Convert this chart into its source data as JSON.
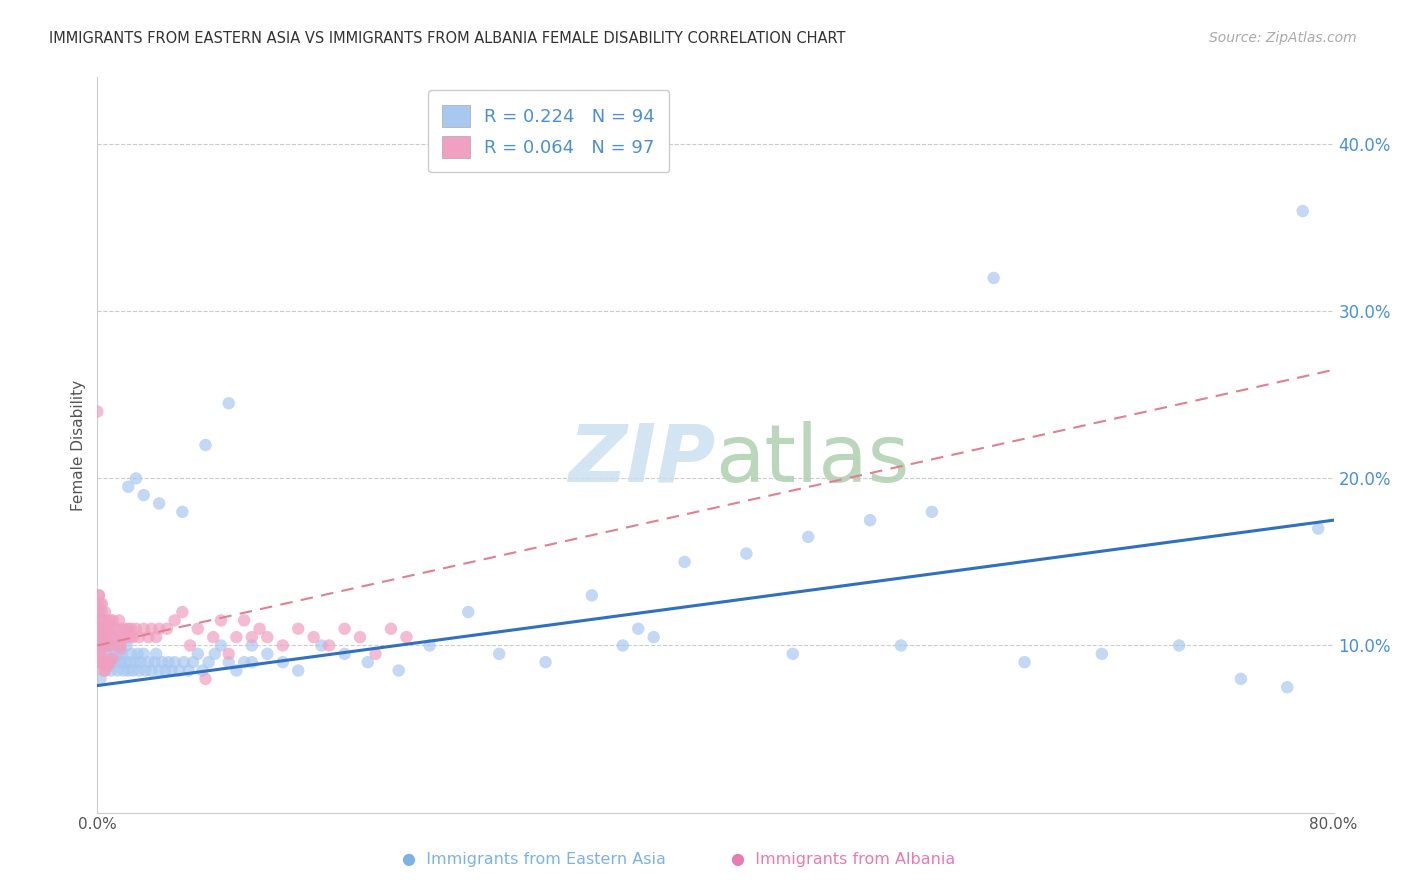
{
  "title": "IMMIGRANTS FROM EASTERN ASIA VS IMMIGRANTS FROM ALBANIA FEMALE DISABILITY CORRELATION CHART",
  "source": "Source: ZipAtlas.com",
  "ylabel": "Female Disability",
  "xlim": [
    0.0,
    0.8
  ],
  "ylim": [
    0.0,
    0.44
  ],
  "yticks": [
    0.1,
    0.2,
    0.3,
    0.4
  ],
  "ytick_labels": [
    "10.0%",
    "20.0%",
    "30.0%",
    "40.0%"
  ],
  "xtick_positions": [
    0.0,
    0.8
  ],
  "xtick_labels": [
    "0.0%",
    "80.0%"
  ],
  "grid_color": "#cccccc",
  "background_color": "#ffffff",
  "watermark": "ZIPatlas",
  "blue_scatter_x": [
    0.001,
    0.002,
    0.002,
    0.003,
    0.003,
    0.004,
    0.004,
    0.005,
    0.005,
    0.006,
    0.007,
    0.008,
    0.009,
    0.01,
    0.011,
    0.012,
    0.013,
    0.014,
    0.015,
    0.016,
    0.017,
    0.018,
    0.019,
    0.02,
    0.021,
    0.022,
    0.023,
    0.025,
    0.026,
    0.027,
    0.028,
    0.03,
    0.031,
    0.033,
    0.035,
    0.037,
    0.038,
    0.04,
    0.042,
    0.044,
    0.046,
    0.048,
    0.05,
    0.053,
    0.056,
    0.059,
    0.062,
    0.065,
    0.068,
    0.072,
    0.076,
    0.08,
    0.085,
    0.09,
    0.095,
    0.1,
    0.11,
    0.12,
    0.13,
    0.145,
    0.16,
    0.175,
    0.195,
    0.215,
    0.24,
    0.26,
    0.29,
    0.32,
    0.35,
    0.38,
    0.42,
    0.46,
    0.5,
    0.54,
    0.58,
    0.34,
    0.36,
    0.45,
    0.52,
    0.6,
    0.65,
    0.7,
    0.74,
    0.77,
    0.78,
    0.79,
    0.02,
    0.025,
    0.03,
    0.04,
    0.055,
    0.07,
    0.085,
    0.1
  ],
  "blue_scatter_y": [
    0.09,
    0.08,
    0.11,
    0.1,
    0.12,
    0.09,
    0.105,
    0.085,
    0.1,
    0.095,
    0.09,
    0.1,
    0.085,
    0.095,
    0.09,
    0.1,
    0.085,
    0.095,
    0.09,
    0.095,
    0.085,
    0.09,
    0.1,
    0.085,
    0.09,
    0.095,
    0.085,
    0.09,
    0.095,
    0.085,
    0.09,
    0.095,
    0.085,
    0.09,
    0.085,
    0.09,
    0.095,
    0.085,
    0.09,
    0.085,
    0.09,
    0.085,
    0.09,
    0.085,
    0.09,
    0.085,
    0.09,
    0.095,
    0.085,
    0.09,
    0.095,
    0.1,
    0.09,
    0.085,
    0.09,
    0.1,
    0.095,
    0.09,
    0.085,
    0.1,
    0.095,
    0.09,
    0.085,
    0.1,
    0.12,
    0.095,
    0.09,
    0.13,
    0.11,
    0.15,
    0.155,
    0.165,
    0.175,
    0.18,
    0.32,
    0.1,
    0.105,
    0.095,
    0.1,
    0.09,
    0.095,
    0.1,
    0.08,
    0.075,
    0.36,
    0.17,
    0.195,
    0.2,
    0.19,
    0.185,
    0.18,
    0.22,
    0.245,
    0.09
  ],
  "pink_scatter_x": [
    0.0,
    0.0,
    0.0,
    0.0,
    0.0,
    0.0,
    0.0,
    0.0,
    0.0,
    0.0,
    0.0,
    0.0,
    0.001,
    0.001,
    0.001,
    0.001,
    0.001,
    0.001,
    0.002,
    0.002,
    0.002,
    0.002,
    0.003,
    0.003,
    0.003,
    0.003,
    0.004,
    0.004,
    0.005,
    0.005,
    0.005,
    0.006,
    0.006,
    0.007,
    0.007,
    0.008,
    0.008,
    0.009,
    0.009,
    0.01,
    0.01,
    0.011,
    0.012,
    0.013,
    0.014,
    0.015,
    0.016,
    0.017,
    0.018,
    0.019,
    0.02,
    0.021,
    0.022,
    0.023,
    0.025,
    0.027,
    0.03,
    0.033,
    0.035,
    0.038,
    0.04,
    0.045,
    0.05,
    0.055,
    0.06,
    0.065,
    0.07,
    0.075,
    0.08,
    0.085,
    0.09,
    0.095,
    0.1,
    0.105,
    0.11,
    0.12,
    0.13,
    0.14,
    0.15,
    0.16,
    0.17,
    0.18,
    0.19,
    0.2,
    0.0,
    0.001,
    0.001,
    0.002,
    0.003,
    0.004,
    0.005,
    0.006,
    0.007,
    0.008,
    0.009,
    0.01,
    0.015
  ],
  "pink_scatter_y": [
    0.1,
    0.11,
    0.12,
    0.09,
    0.105,
    0.115,
    0.1,
    0.125,
    0.095,
    0.105,
    0.115,
    0.125,
    0.1,
    0.11,
    0.12,
    0.09,
    0.105,
    0.13,
    0.1,
    0.115,
    0.125,
    0.095,
    0.105,
    0.115,
    0.125,
    0.09,
    0.105,
    0.115,
    0.1,
    0.11,
    0.12,
    0.105,
    0.115,
    0.1,
    0.11,
    0.105,
    0.115,
    0.1,
    0.11,
    0.105,
    0.115,
    0.105,
    0.11,
    0.105,
    0.115,
    0.1,
    0.11,
    0.105,
    0.11,
    0.105,
    0.11,
    0.105,
    0.11,
    0.105,
    0.11,
    0.105,
    0.11,
    0.105,
    0.11,
    0.105,
    0.11,
    0.11,
    0.115,
    0.12,
    0.1,
    0.11,
    0.08,
    0.105,
    0.115,
    0.095,
    0.105,
    0.115,
    0.105,
    0.11,
    0.105,
    0.1,
    0.11,
    0.105,
    0.1,
    0.11,
    0.105,
    0.095,
    0.11,
    0.105,
    0.24,
    0.13,
    0.105,
    0.095,
    0.09,
    0.085,
    0.085,
    0.088,
    0.088,
    0.09,
    0.092,
    0.092,
    0.098
  ],
  "blue_line": {
    "x_start": 0.0,
    "y_start": 0.076,
    "x_end": 0.8,
    "y_end": 0.175,
    "color": "#3070c0",
    "linewidth": 2.2
  },
  "pink_line": {
    "x_start": 0.0,
    "y_start": 0.1,
    "x_end": 0.8,
    "y_end": 0.265,
    "color": "#e08090",
    "linewidth": 1.5
  },
  "blue_color": "#a8c8f0",
  "pink_color": "#f0a0c0",
  "legend_entries": [
    {
      "label_r": "R = ",
      "r_val": "0.224",
      "label_n": "   N = ",
      "n_val": "94",
      "color": "#a8c8f0"
    },
    {
      "label_r": "R = ",
      "r_val": "0.064",
      "label_n": "   N = ",
      "n_val": "97",
      "color": "#f0a0c0"
    }
  ],
  "bottom_labels": [
    "Immigrants from Eastern Asia",
    "Immigrants from Albania"
  ],
  "bottom_label_colors": [
    "#7bb3e8",
    "#e87bb0"
  ]
}
